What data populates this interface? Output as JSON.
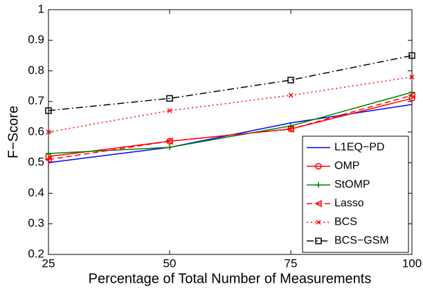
{
  "chart_data": {
    "type": "line",
    "xlabel": "Percentage of Total Number of Measurements",
    "ylabel": "F−Score",
    "x": [
      25,
      50,
      75,
      100
    ],
    "xlim": [
      25,
      100
    ],
    "xticks": [
      25,
      50,
      75,
      100
    ],
    "ylim": [
      0.2,
      1
    ],
    "yticks": [
      0.2,
      0.3,
      0.4,
      0.5,
      0.6,
      0.7,
      0.8,
      0.9,
      1
    ],
    "grid": false,
    "legend": "lower right",
    "series": [
      {
        "name": "L1EQ−PD",
        "color": "#0000ff",
        "linestyle": "solid",
        "marker": "none",
        "values": [
          0.5,
          0.55,
          0.63,
          0.69
        ]
      },
      {
        "name": "OMP",
        "color": "#ff0000",
        "linestyle": "solid",
        "marker": "circle",
        "values": [
          0.52,
          0.57,
          0.61,
          0.71
        ]
      },
      {
        "name": "StOMP",
        "color": "#008000",
        "linestyle": "solid",
        "marker": "plus",
        "values": [
          0.53,
          0.55,
          0.62,
          0.73
        ]
      },
      {
        "name": "Lasso",
        "color": "#ff0000",
        "linestyle": "dashed",
        "marker": "triangle-left",
        "values": [
          0.51,
          0.57,
          0.61,
          0.72
        ]
      },
      {
        "name": "BCS",
        "color": "#ff0000",
        "linestyle": "dotted",
        "marker": "x",
        "values": [
          0.6,
          0.67,
          0.72,
          0.78
        ]
      },
      {
        "name": "BCS−GSM",
        "color": "#000000",
        "linestyle": "dashdot",
        "marker": "square",
        "values": [
          0.67,
          0.71,
          0.77,
          0.85
        ]
      }
    ]
  }
}
